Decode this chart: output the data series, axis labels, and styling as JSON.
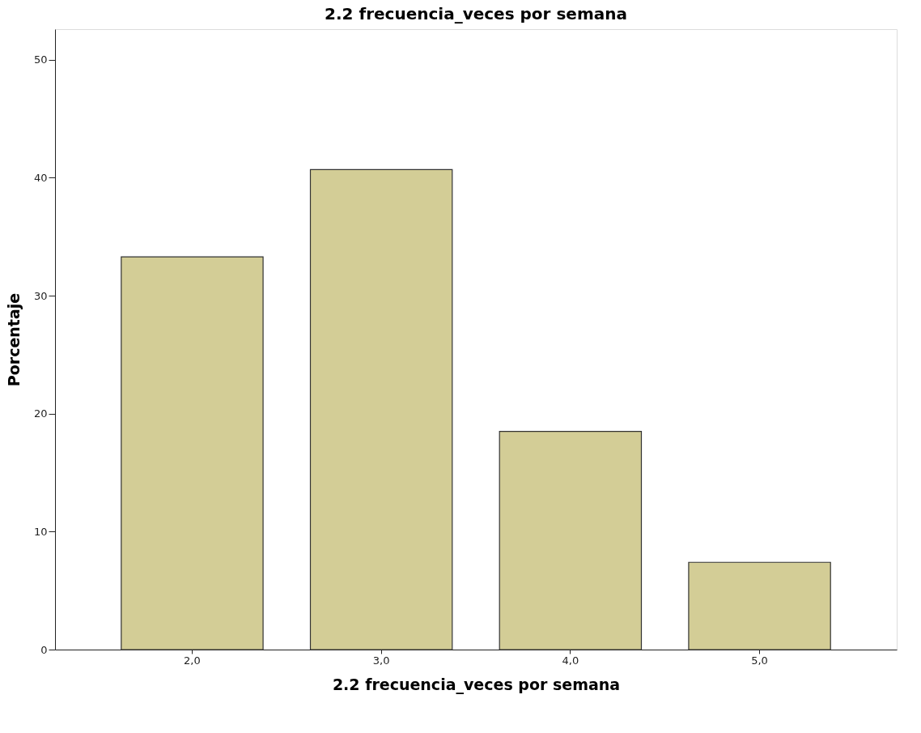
{
  "chart_data": {
    "type": "bar",
    "title": "2.2 frecuencia_veces por semana",
    "xlabel": "2.2 frecuencia_veces por semana",
    "ylabel": "Porcentaje",
    "categories": [
      "2,0",
      "3,0",
      "4,0",
      "5,0"
    ],
    "values": [
      33.3,
      40.7,
      18.5,
      7.4
    ],
    "color": "#d3cd96",
    "ylim": [
      0,
      52.6
    ],
    "yticks": [
      0,
      10,
      20,
      30,
      40,
      50
    ],
    "grid": false
  }
}
